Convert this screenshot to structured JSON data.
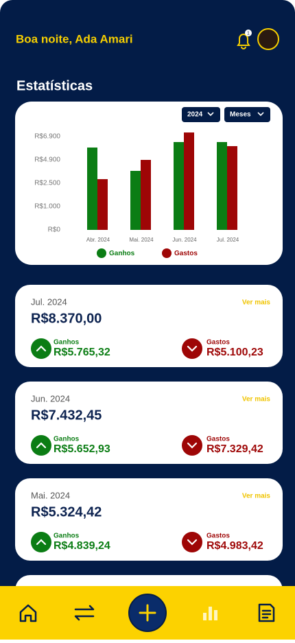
{
  "header": {
    "greeting": "Boa noite, Ada Amari",
    "notification_count": "1"
  },
  "section_title": "Estatísticas",
  "filters": {
    "year": "2024",
    "period": "Meses"
  },
  "chart_data": {
    "type": "bar",
    "categories": [
      "Abr. 2024",
      "Mai. 2024",
      "Jun. 2024",
      "Jul. 2024"
    ],
    "series": [
      {
        "name": "Ganhos",
        "color": "#0b7d14",
        "values": [
          5960,
          3770,
          6430,
          6430
        ]
      },
      {
        "name": "Gastos",
        "color": "#9e0606",
        "values": [
          2920,
          4900,
          7250,
          6080
        ]
      }
    ],
    "ylim": [
      0,
      7500
    ],
    "yticks": [
      {
        "value": 0,
        "label": "R$0"
      },
      {
        "value": 1000,
        "label": "R$1.000"
      },
      {
        "value": 2500,
        "label": "R$2.500"
      },
      {
        "value": 4900,
        "label": "R$4.900"
      },
      {
        "value": 6900,
        "label": "R$6.900"
      }
    ],
    "legend": "bottom",
    "grid": false
  },
  "summaries": [
    {
      "month": "Jul. 2024",
      "view_more": "Ver mais",
      "total": "R$8.370,00",
      "income_label": "Ganhos",
      "income": "R$5.765,32",
      "expense_label": "Gastos",
      "expense": "R$5.100,23"
    },
    {
      "month": "Jun. 2024",
      "view_more": "Ver mais",
      "total": "R$7.432,45",
      "income_label": "Ganhos",
      "income": "R$5.652,93",
      "expense_label": "Gastos",
      "expense": "R$7.329,42"
    },
    {
      "month": "Mai. 2024",
      "view_more": "Ver mais",
      "total": "R$5.324,42",
      "income_label": "Ganhos",
      "income": "R$4.839,24",
      "expense_label": "Gastos",
      "expense": "R$4.983,42"
    }
  ]
}
